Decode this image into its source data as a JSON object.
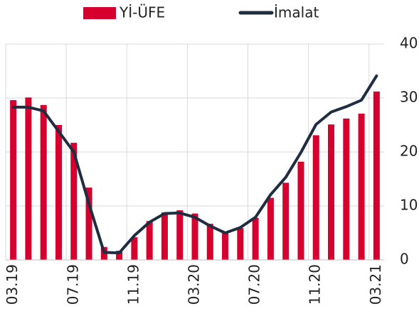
{
  "chart_data": {
    "type": "bar-line",
    "categories": [
      "03.19",
      null,
      null,
      null,
      "07.19",
      null,
      null,
      null,
      "11.19",
      null,
      null,
      null,
      "03.20",
      null,
      null,
      null,
      "07.20",
      null,
      null,
      null,
      "11.20",
      null,
      null,
      null,
      "03.21"
    ],
    "series": [
      {
        "name": "Yİ-ÜFE",
        "type": "bar",
        "color": "#d6002f",
        "values": [
          29.6,
          30.1,
          28.7,
          25.0,
          21.7,
          13.4,
          2.4,
          1.7,
          4.2,
          7.2,
          8.8,
          9.2,
          8.6,
          6.7,
          5.0,
          5.9,
          7.8,
          11.5,
          14.3,
          18.2,
          23.1,
          25.1,
          26.2,
          27.1,
          31.2
        ]
      },
      {
        "name": "İmalat",
        "type": "line",
        "color": "#1e2d40",
        "values": [
          28.3,
          28.3,
          27.6,
          23.8,
          20.0,
          10.4,
          1.4,
          1.3,
          4.5,
          7.0,
          8.6,
          8.7,
          7.9,
          6.3,
          5.0,
          6.0,
          7.9,
          12.1,
          15.3,
          19.9,
          25.1,
          27.4,
          28.4,
          29.6,
          34.1
        ]
      }
    ],
    "ylim": [
      0,
      40
    ],
    "yticks": [
      0,
      10,
      20,
      30,
      40
    ],
    "grid": true
  }
}
